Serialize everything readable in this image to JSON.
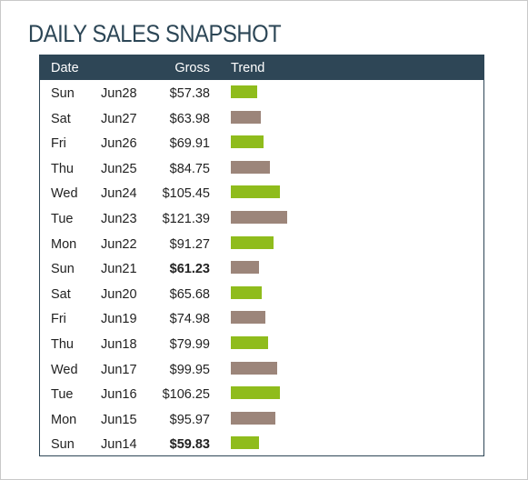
{
  "title": "DAILY SALES SNAPSHOT",
  "columns": {
    "date": "Date",
    "gross": "Gross",
    "trend": "Trend"
  },
  "colors": {
    "up": "#8fbc1c",
    "down": "#9c857a",
    "header": "#2e4656"
  },
  "rows": [
    {
      "day": "Sun",
      "date": "Jun28",
      "gross": "$57.38",
      "value": 57.38,
      "direction": "up",
      "bold": false
    },
    {
      "day": "Sat",
      "date": "Jun27",
      "gross": "$63.98",
      "value": 63.98,
      "direction": "down",
      "bold": false
    },
    {
      "day": "Fri",
      "date": "Jun26",
      "gross": "$69.91",
      "value": 69.91,
      "direction": "up",
      "bold": false
    },
    {
      "day": "Thu",
      "date": "Jun25",
      "gross": "$84.75",
      "value": 84.75,
      "direction": "down",
      "bold": false
    },
    {
      "day": "Wed",
      "date": "Jun24",
      "gross": "$105.45",
      "value": 105.45,
      "direction": "up",
      "bold": false
    },
    {
      "day": "Tue",
      "date": "Jun23",
      "gross": "$121.39",
      "value": 121.39,
      "direction": "down",
      "bold": false
    },
    {
      "day": "Mon",
      "date": "Jun22",
      "gross": "$91.27",
      "value": 91.27,
      "direction": "up",
      "bold": false
    },
    {
      "day": "Sun",
      "date": "Jun21",
      "gross": "$61.23",
      "value": 61.23,
      "direction": "down",
      "bold": true
    },
    {
      "day": "Sat",
      "date": "Jun20",
      "gross": "$65.68",
      "value": 65.68,
      "direction": "up",
      "bold": false
    },
    {
      "day": "Fri",
      "date": "Jun19",
      "gross": "$74.98",
      "value": 74.98,
      "direction": "down",
      "bold": false
    },
    {
      "day": "Thu",
      "date": "Jun18",
      "gross": "$79.99",
      "value": 79.99,
      "direction": "up",
      "bold": false
    },
    {
      "day": "Wed",
      "date": "Jun17",
      "gross": "$99.95",
      "value": 99.95,
      "direction": "down",
      "bold": false
    },
    {
      "day": "Tue",
      "date": "Jun16",
      "gross": "$106.25",
      "value": 106.25,
      "direction": "up",
      "bold": false
    },
    {
      "day": "Mon",
      "date": "Jun15",
      "gross": "$95.97",
      "value": 95.97,
      "direction": "down",
      "bold": false
    },
    {
      "day": "Sun",
      "date": "Jun14",
      "gross": "$59.83",
      "value": 59.83,
      "direction": "up",
      "bold": true
    }
  ]
}
